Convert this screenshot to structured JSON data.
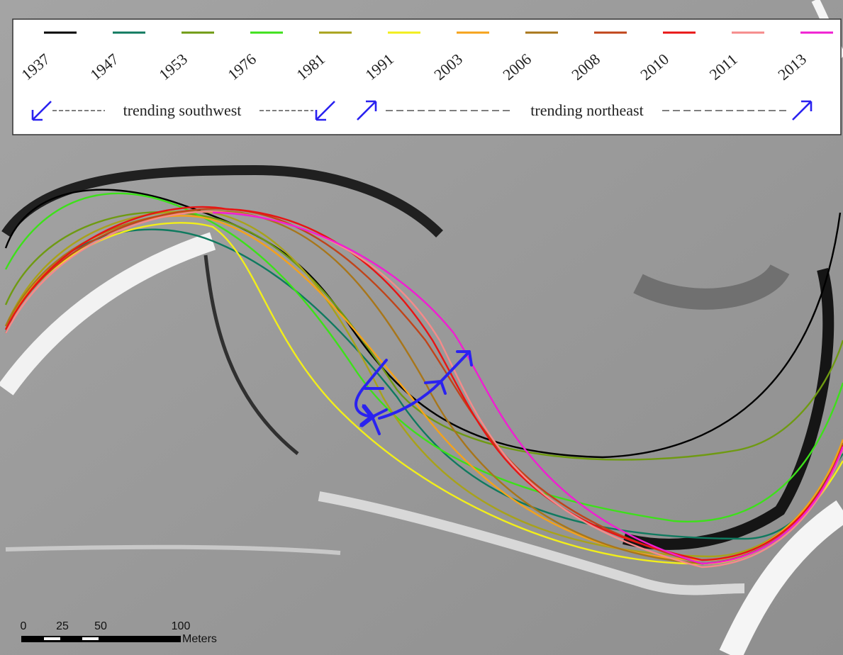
{
  "legend": {
    "items": [
      {
        "label": "1937",
        "color": "#000000"
      },
      {
        "label": "1947",
        "color": "#0f7a5f"
      },
      {
        "label": "1953",
        "color": "#6f9a12"
      },
      {
        "label": "1976",
        "color": "#3de01a"
      },
      {
        "label": "1981",
        "color": "#a8a21a"
      },
      {
        "label": "1991",
        "color": "#f2ee1a"
      },
      {
        "label": "2003",
        "color": "#f5a21a"
      },
      {
        "label": "2006",
        "color": "#a8761a"
      },
      {
        "label": "2008",
        "color": "#c0441a"
      },
      {
        "label": "2010",
        "color": "#e81414"
      },
      {
        "label": "2011",
        "color": "#f58a8a"
      },
      {
        "label": "2013",
        "color": "#f01ed2"
      }
    ],
    "trend_southwest": "trending southwest",
    "trend_northeast": "trending northeast"
  },
  "scale_bar": {
    "ticks": [
      "0",
      "25",
      "50",
      "100"
    ],
    "unit": "Meters"
  }
}
